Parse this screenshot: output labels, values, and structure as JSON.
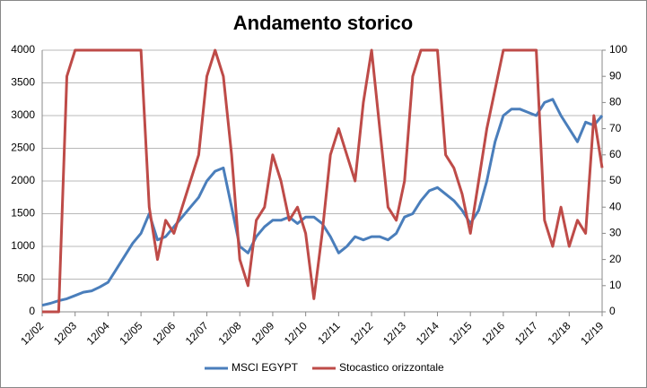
{
  "chart_data": {
    "type": "line",
    "title": "Andamento storico",
    "categories": [
      "12/02",
      null,
      null,
      null,
      "12/03",
      null,
      null,
      null,
      "12/04",
      null,
      null,
      null,
      "12/05",
      null,
      null,
      null,
      "12/06",
      null,
      null,
      null,
      "12/07",
      null,
      null,
      null,
      "12/08",
      null,
      null,
      null,
      "12/09",
      null,
      null,
      null,
      "12/10",
      null,
      null,
      null,
      "12/11",
      null,
      null,
      null,
      "12/12",
      null,
      null,
      null,
      "12/13",
      null,
      null,
      null,
      "12/14",
      null,
      null,
      null,
      "12/15",
      null,
      null,
      null,
      "12/16",
      null,
      null,
      null,
      "12/17",
      null,
      null,
      null,
      "12/18",
      null,
      null,
      null,
      "12/19"
    ],
    "series": [
      {
        "name": "MSCI EGYPT",
        "color": "#4a7ebb",
        "values": [
          100,
          130,
          170,
          200,
          250,
          300,
          320,
          380,
          450,
          650,
          850,
          1050,
          1200,
          1500,
          1100,
          1150,
          1300,
          1450,
          1600,
          1750,
          2000,
          2150,
          2200,
          1600,
          1000,
          900,
          1150,
          1300,
          1400,
          1400,
          1450,
          1350,
          1450,
          1450,
          1350,
          1150,
          900,
          1000,
          1150,
          1100,
          1150,
          1150,
          1100,
          1200,
          1450,
          1500,
          1700,
          1850,
          1900,
          1800,
          1700,
          1550,
          1350,
          1550,
          2000,
          2600,
          3000,
          3100,
          3100,
          3050,
          3000,
          3200,
          3250,
          3000,
          2800,
          2600,
          2900,
          2850,
          3000
        ]
      },
      {
        "name": "Stocastico orizzontale",
        "color": "#be4b48",
        "axis": "y2",
        "values": [
          0,
          0,
          0,
          90,
          100,
          100,
          100,
          100,
          100,
          100,
          100,
          100,
          100,
          40,
          20,
          35,
          30,
          40,
          50,
          60,
          90,
          100,
          90,
          60,
          20,
          10,
          35,
          40,
          60,
          50,
          35,
          40,
          30,
          5,
          30,
          60,
          70,
          60,
          50,
          80,
          100,
          70,
          40,
          35,
          50,
          90,
          100,
          100,
          100,
          60,
          55,
          45,
          30,
          50,
          70,
          85,
          100,
          100,
          100,
          100,
          100,
          35,
          25,
          40,
          25,
          35,
          30,
          75,
          55
        ]
      }
    ],
    "ylim": [
      0,
      4000
    ],
    "yticks": [
      0,
      500,
      1000,
      1500,
      2000,
      2500,
      3000,
      3500,
      4000
    ],
    "y2lim": [
      0,
      100
    ],
    "y2ticks": [
      0,
      10,
      20,
      30,
      40,
      50,
      60,
      70,
      80,
      90,
      100
    ],
    "grid": true,
    "legend": "bottom"
  }
}
